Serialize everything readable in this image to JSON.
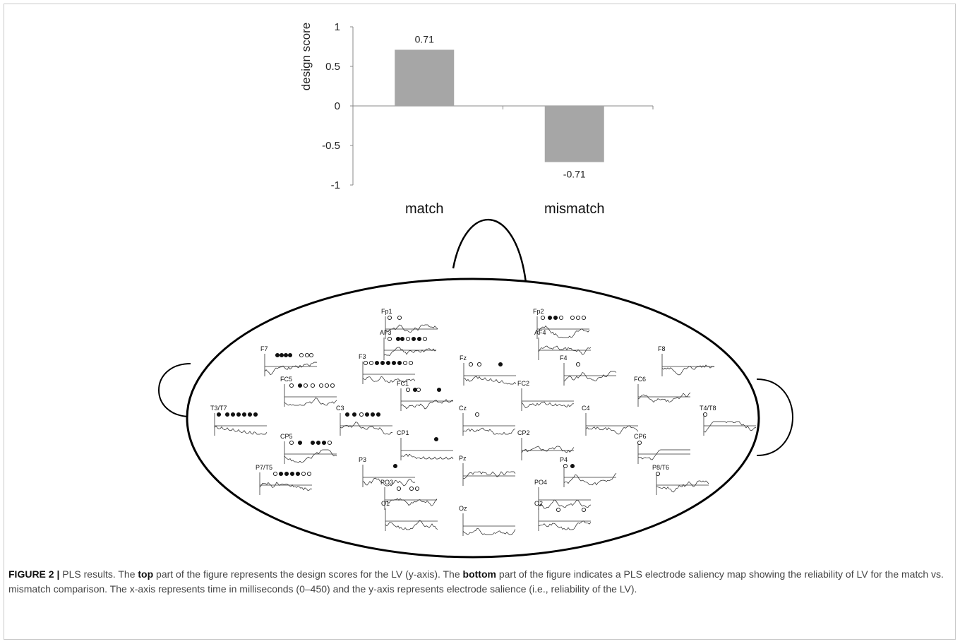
{
  "chart_data": {
    "type": "bar",
    "categories": [
      "match",
      "mismatch"
    ],
    "values": [
      0.71,
      -0.71
    ],
    "data_labels": [
      "0.71",
      "-0.71"
    ],
    "ylabel": "design score",
    "xlabel": "",
    "ylim": [
      -1,
      1
    ],
    "yticks": [
      "1",
      "0.5",
      "0",
      "-0.5",
      "-1"
    ],
    "bar_color": "#a6a6a6",
    "grid": false
  },
  "saliency_map": {
    "electrodes": [
      "Fp1",
      "Fp2",
      "AF3",
      "AF4",
      "F7",
      "F3",
      "Fz",
      "F4",
      "F8",
      "FC5",
      "FC1",
      "FC2",
      "FC6",
      "T3/T7",
      "C3",
      "Cz",
      "C4",
      "T4/T8",
      "CP5",
      "CP1",
      "CP2",
      "CP6",
      "P7/T5",
      "P3",
      "Pz",
      "P4",
      "P8/T6",
      "PO3",
      "PO4",
      "O1",
      "Oz",
      "O2"
    ]
  },
  "caption": {
    "label": "FIGURE 2 |",
    "t1": " PLS results. The ",
    "b1": "top",
    "t2": " part of the figure represents the design scores for the LV (y-axis). The ",
    "b2": "bottom",
    "t3": " part of the figure indicates a PLS electrode saliency map showing the reliability of LV for the match vs. mismatch comparison. The x-axis represents time in milliseconds (0–450) and the y-axis represents electrode salience (i.e., reliability of the LV)."
  }
}
